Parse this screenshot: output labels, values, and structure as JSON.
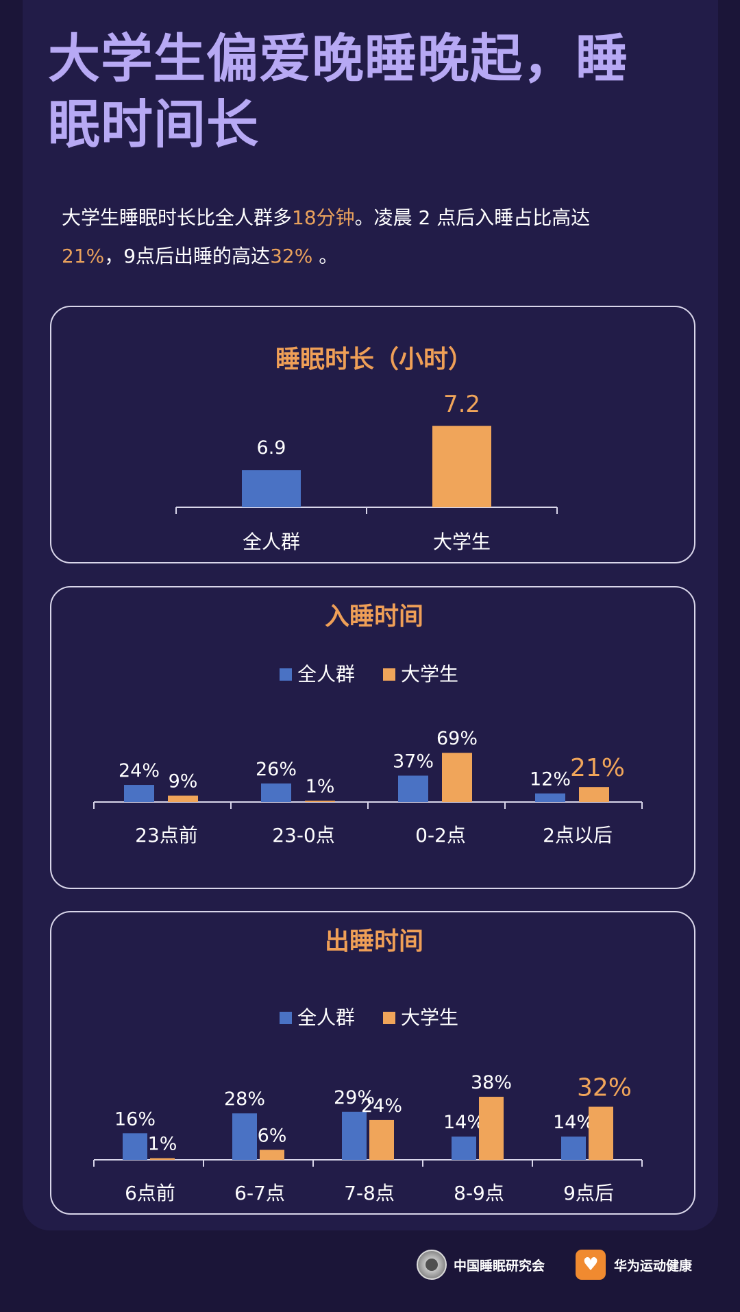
{
  "page": {
    "title": "大学生偏爱晚睡晚起，睡眠时间长",
    "intro": {
      "t1": "大学生睡眠时长比全人群多",
      "h1": "18分钟",
      "t2": "。凌晨 2 点后入睡占比高达",
      "h2": "21%",
      "t3": "，9点后出睡的高达",
      "h3": "32%",
      "t4": " 。"
    }
  },
  "colors": {
    "blue": "#4a72c4",
    "orange": "#f0a55a",
    "title": "#b7a9f4",
    "panel_title": "#ef9f57",
    "axis": "#d9d6ea",
    "text": "#ffffff"
  },
  "chart_data": [
    {
      "type": "bar",
      "title": "睡眠时长（小时）",
      "categories": [
        "全人群",
        "大学生"
      ],
      "series": [
        {
          "values": [
            6.9,
            7.2
          ]
        }
      ],
      "value_labels": [
        "6.9",
        "7.2"
      ],
      "point_colors": [
        "blue",
        "orange"
      ],
      "highlight_index": 1,
      "legend": "none"
    },
    {
      "type": "bar",
      "title": "入睡时间",
      "categories": [
        "23点前",
        "23-0点",
        "0-2点",
        "2点以后"
      ],
      "series": [
        {
          "name": "全人群",
          "values": [
            24,
            26,
            37,
            12
          ]
        },
        {
          "name": "大学生",
          "values": [
            9,
            1,
            69,
            21
          ]
        }
      ],
      "unit": "%",
      "legend": "top-center",
      "highlight": {
        "series": 1,
        "index": 3
      }
    },
    {
      "type": "bar",
      "title": "出睡时间",
      "categories": [
        "6点前",
        "6-7点",
        "7-8点",
        "8-9点",
        "9点后"
      ],
      "series": [
        {
          "name": "全人群",
          "values": [
            16,
            28,
            29,
            14,
            14
          ]
        },
        {
          "name": "大学生",
          "values": [
            1,
            6,
            24,
            38,
            32
          ]
        }
      ],
      "unit": "%",
      "legend": "top-center",
      "highlight": {
        "series": 1,
        "index": 4
      }
    }
  ],
  "footer": {
    "org1": "中国睡眠研究会",
    "org2": "华为运动健康",
    "org1_icon": "sleep-society-logo-icon",
    "org2_icon": "huawei-health-logo-icon"
  }
}
